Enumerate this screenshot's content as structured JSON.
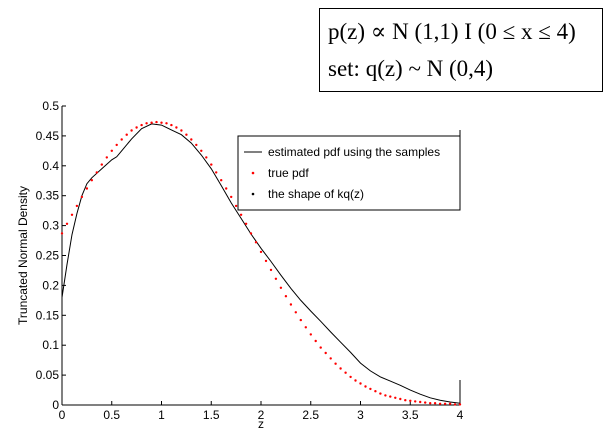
{
  "formula": {
    "line1": "p(z) ∝ N (1,1) I (0 ≤ x ≤ 4)",
    "line2": "set:   q(z) ~ N (0,4)"
  },
  "chart_data": {
    "type": "line",
    "title": "",
    "xlabel": "z",
    "ylabel": "Truncated Normal Density",
    "xlim": [
      0,
      4
    ],
    "ylim": [
      0,
      0.5
    ],
    "x_ticks": [
      0,
      0.5,
      1,
      1.5,
      2,
      2.5,
      3,
      3.5,
      4
    ],
    "x_tick_labels": [
      "0",
      "0.5",
      "1",
      "1.5",
      "2",
      "2.5",
      "3",
      "3.5",
      "4"
    ],
    "y_ticks": [
      0,
      0.05,
      0.1,
      0.15,
      0.2,
      0.25,
      0.3,
      0.35,
      0.4,
      0.45,
      0.5
    ],
    "y_tick_labels": [
      "0",
      "0.05",
      "0.1",
      "0.15",
      "0.2",
      "0.25",
      "0.3",
      "0.35",
      "0.4",
      "0.45",
      "0.5"
    ],
    "grid": false,
    "legend_position": "top-right",
    "series": [
      {
        "name": "estimated pdf using the samples",
        "style": "solid-line",
        "color": "#000000",
        "x": [
          0,
          0.05,
          0.1,
          0.15,
          0.2,
          0.25,
          0.3,
          0.4,
          0.5,
          0.55,
          0.6,
          0.7,
          0.8,
          0.9,
          1.0,
          1.1,
          1.2,
          1.3,
          1.4,
          1.5,
          1.6,
          1.7,
          1.8,
          1.9,
          2.0,
          2.1,
          2.2,
          2.3,
          2.4,
          2.5,
          2.6,
          2.7,
          2.8,
          2.9,
          3.0,
          3.1,
          3.2,
          3.3,
          3.4,
          3.5,
          3.6,
          3.7,
          3.8,
          3.9,
          4.0
        ],
        "y": [
          0.18,
          0.235,
          0.285,
          0.32,
          0.35,
          0.37,
          0.38,
          0.395,
          0.41,
          0.415,
          0.425,
          0.445,
          0.462,
          0.47,
          0.468,
          0.46,
          0.452,
          0.438,
          0.418,
          0.395,
          0.367,
          0.338,
          0.312,
          0.286,
          0.262,
          0.24,
          0.217,
          0.195,
          0.175,
          0.157,
          0.14,
          0.122,
          0.105,
          0.088,
          0.07,
          0.057,
          0.047,
          0.04,
          0.033,
          0.025,
          0.018,
          0.012,
          0.008,
          0.005,
          0.003
        ]
      },
      {
        "name": "true pdf",
        "style": "dotted-red",
        "color": "#ff0000",
        "x": [
          0,
          0.05,
          0.1,
          0.15,
          0.2,
          0.25,
          0.3,
          0.35,
          0.4,
          0.45,
          0.5,
          0.55,
          0.6,
          0.65,
          0.7,
          0.75,
          0.8,
          0.85,
          0.9,
          0.95,
          1.0,
          1.05,
          1.1,
          1.15,
          1.2,
          1.25,
          1.3,
          1.35,
          1.4,
          1.45,
          1.5,
          1.55,
          1.6,
          1.65,
          1.7,
          1.75,
          1.8,
          1.85,
          1.9,
          1.95,
          2.0,
          2.05,
          2.1,
          2.15,
          2.2,
          2.25,
          2.3,
          2.35,
          2.4,
          2.45,
          2.5,
          2.55,
          2.6,
          2.65,
          2.7,
          2.75,
          2.8,
          2.85,
          2.9,
          2.95,
          3.0,
          3.05,
          3.1,
          3.15,
          3.2,
          3.25,
          3.3,
          3.35,
          3.4,
          3.45,
          3.5,
          3.55,
          3.6,
          3.65,
          3.7,
          3.75,
          3.8,
          3.85,
          3.9,
          3.95,
          4.0
        ],
        "y": [
          0.287,
          0.303,
          0.318,
          0.333,
          0.348,
          0.362,
          0.376,
          0.389,
          0.402,
          0.414,
          0.425,
          0.435,
          0.444,
          0.452,
          0.459,
          0.464,
          0.468,
          0.471,
          0.472,
          0.473,
          0.472,
          0.471,
          0.468,
          0.464,
          0.459,
          0.452,
          0.444,
          0.435,
          0.425,
          0.414,
          0.402,
          0.389,
          0.376,
          0.362,
          0.348,
          0.333,
          0.318,
          0.303,
          0.287,
          0.272,
          0.256,
          0.241,
          0.226,
          0.211,
          0.196,
          0.182,
          0.168,
          0.155,
          0.142,
          0.13,
          0.118,
          0.107,
          0.096,
          0.087,
          0.078,
          0.069,
          0.061,
          0.054,
          0.047,
          0.041,
          0.036,
          0.031,
          0.027,
          0.023,
          0.019,
          0.016,
          0.014,
          0.012,
          0.01,
          0.008,
          0.007,
          0.006,
          0.005,
          0.004,
          0.003,
          0.003,
          0.002,
          0.002,
          0.002,
          0.001,
          0.001
        ]
      },
      {
        "name": "the shape of kq(z)",
        "style": "dotted-black",
        "color": "#000000",
        "x": [],
        "y": []
      }
    ]
  }
}
